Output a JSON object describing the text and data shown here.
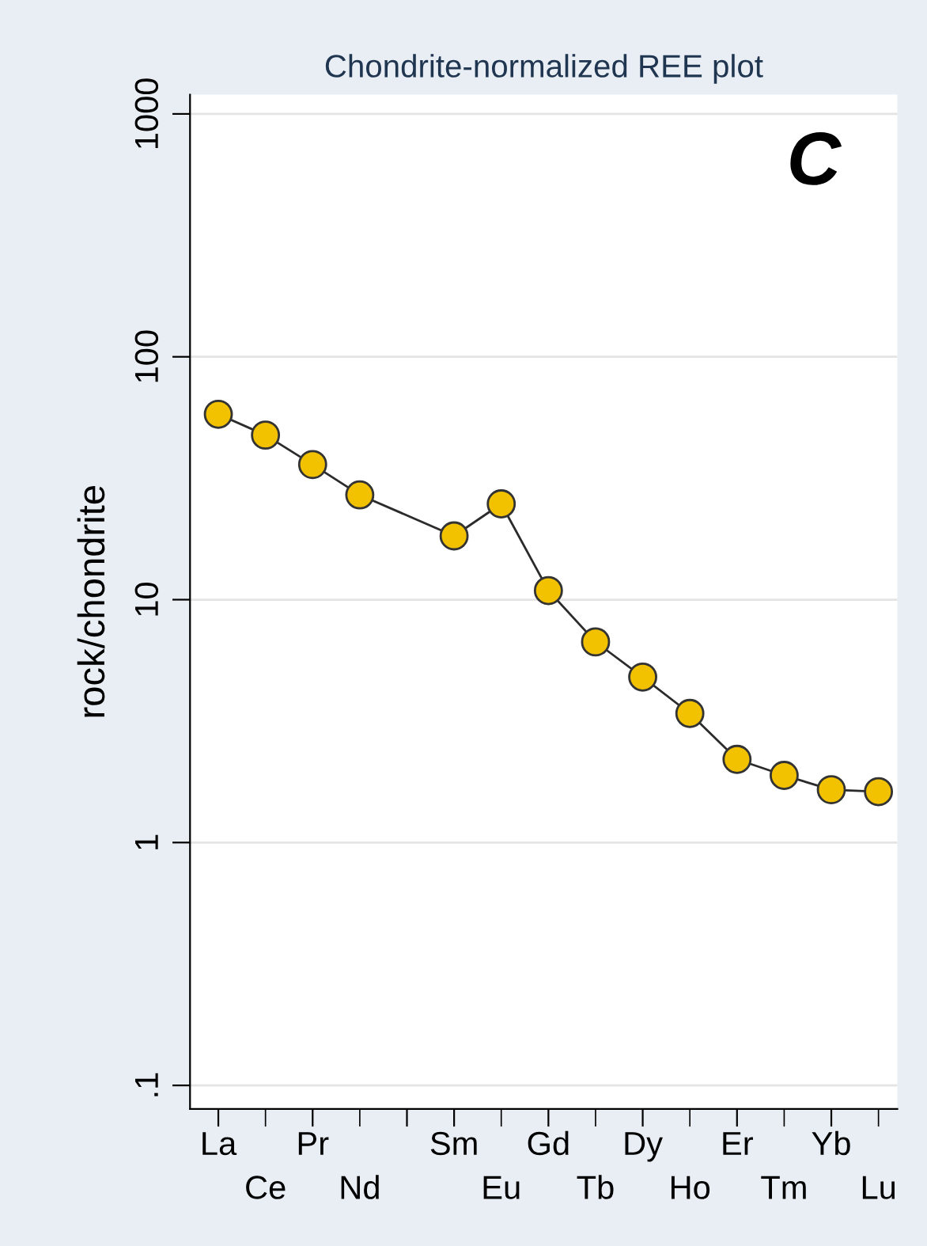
{
  "chart_data": {
    "type": "line",
    "title": "Chondrite-normalized REE plot",
    "ylabel": "rock/chondrite",
    "categories": [
      "La",
      "Ce",
      "Pr",
      "Nd",
      null,
      "Sm",
      "Eu",
      "Gd",
      "Tb",
      "Dy",
      "Ho",
      "Er",
      "Tm",
      "Yb",
      "Lu"
    ],
    "series": [
      {
        "color": "#f2c200",
        "values": [
          58,
          47.6,
          36,
          27,
          null,
          18.3,
          24.8,
          10.9,
          6.7,
          4.8,
          3.4,
          2.2,
          1.89,
          1.65,
          1.62
        ]
      }
    ],
    "log": true,
    "ylim": [
      0.08,
      1200
    ],
    "yticks": [
      {
        "value": 0.1,
        "label": ".1"
      },
      1,
      10,
      100,
      1000
    ],
    "grid": "y",
    "marker": "circle",
    "line_style": "solid",
    "annotations": [
      "C"
    ]
  }
}
